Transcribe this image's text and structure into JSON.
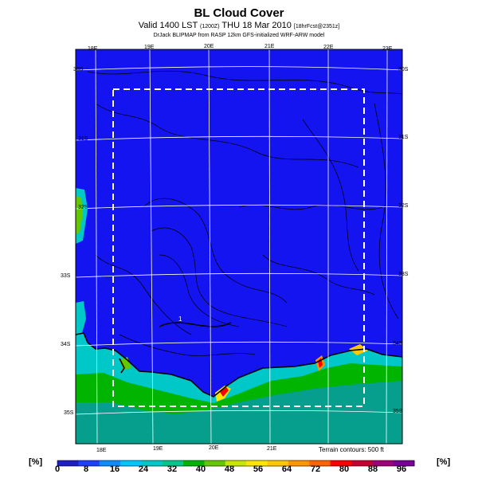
{
  "header": {
    "title": "BL Cloud Cover",
    "subtitle_main": "Valid 1400 LST",
    "subtitle_small1": "(1200Z)",
    "subtitle_date": "THU 18 Mar 2010",
    "subtitle_small2": "[18hrFcst@2351z]",
    "credit": "DrJack BLIPMAP from RASP 12km GFS-initialized WRF-ARW model"
  },
  "map": {
    "top_lon_labels": [
      "18E",
      "19E",
      "20E",
      "21E",
      "22E",
      "23E"
    ],
    "bottom_lon_labels": [
      "18E",
      "19E",
      "20E",
      "21E"
    ],
    "left_lat_labels": [
      "30S",
      "31S",
      "32S",
      "33S",
      "34S",
      "35S"
    ],
    "right_lat_labels": [
      "30S",
      "31S",
      "32S",
      "33S",
      "34S",
      "35S"
    ],
    "terrain_note": "Terrain contours: 500 ft",
    "marker_label": "1"
  },
  "colorbar": {
    "unit_label": "[%]",
    "ticks": [
      "0",
      "8",
      "16",
      "24",
      "32",
      "40",
      "48",
      "56",
      "64",
      "72",
      "80",
      "88",
      "96"
    ],
    "colors": [
      "#1f1fc8",
      "#1e40ff",
      "#0b8cff",
      "#00c8ff",
      "#00c8c8",
      "#00c88c",
      "#00b400",
      "#64c800",
      "#c8e600",
      "#ffe600",
      "#ffc800",
      "#ff9600",
      "#ff6400",
      "#ff0000",
      "#c80032",
      "#a00078",
      "#780096"
    ]
  }
}
